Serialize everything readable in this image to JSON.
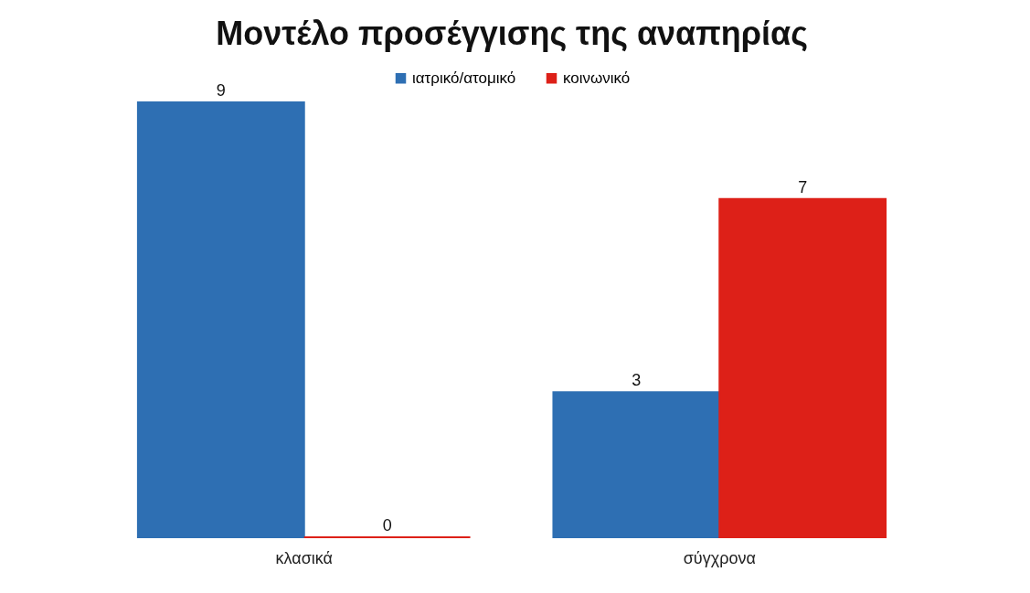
{
  "chart_data": {
    "type": "bar",
    "title": "Μοντέλο προσέγγισης της αναπηρίας",
    "categories": [
      "κλασικά",
      "σύγχρονα"
    ],
    "series": [
      {
        "name": "ιατρικό/ατομικό",
        "color": "#2e6fb3",
        "values": [
          9,
          3
        ]
      },
      {
        "name": "κοινωνικό",
        "color": "#dd2018",
        "values": [
          0,
          7
        ]
      }
    ],
    "data_labels": true,
    "legend": "top",
    "grid": false
  }
}
